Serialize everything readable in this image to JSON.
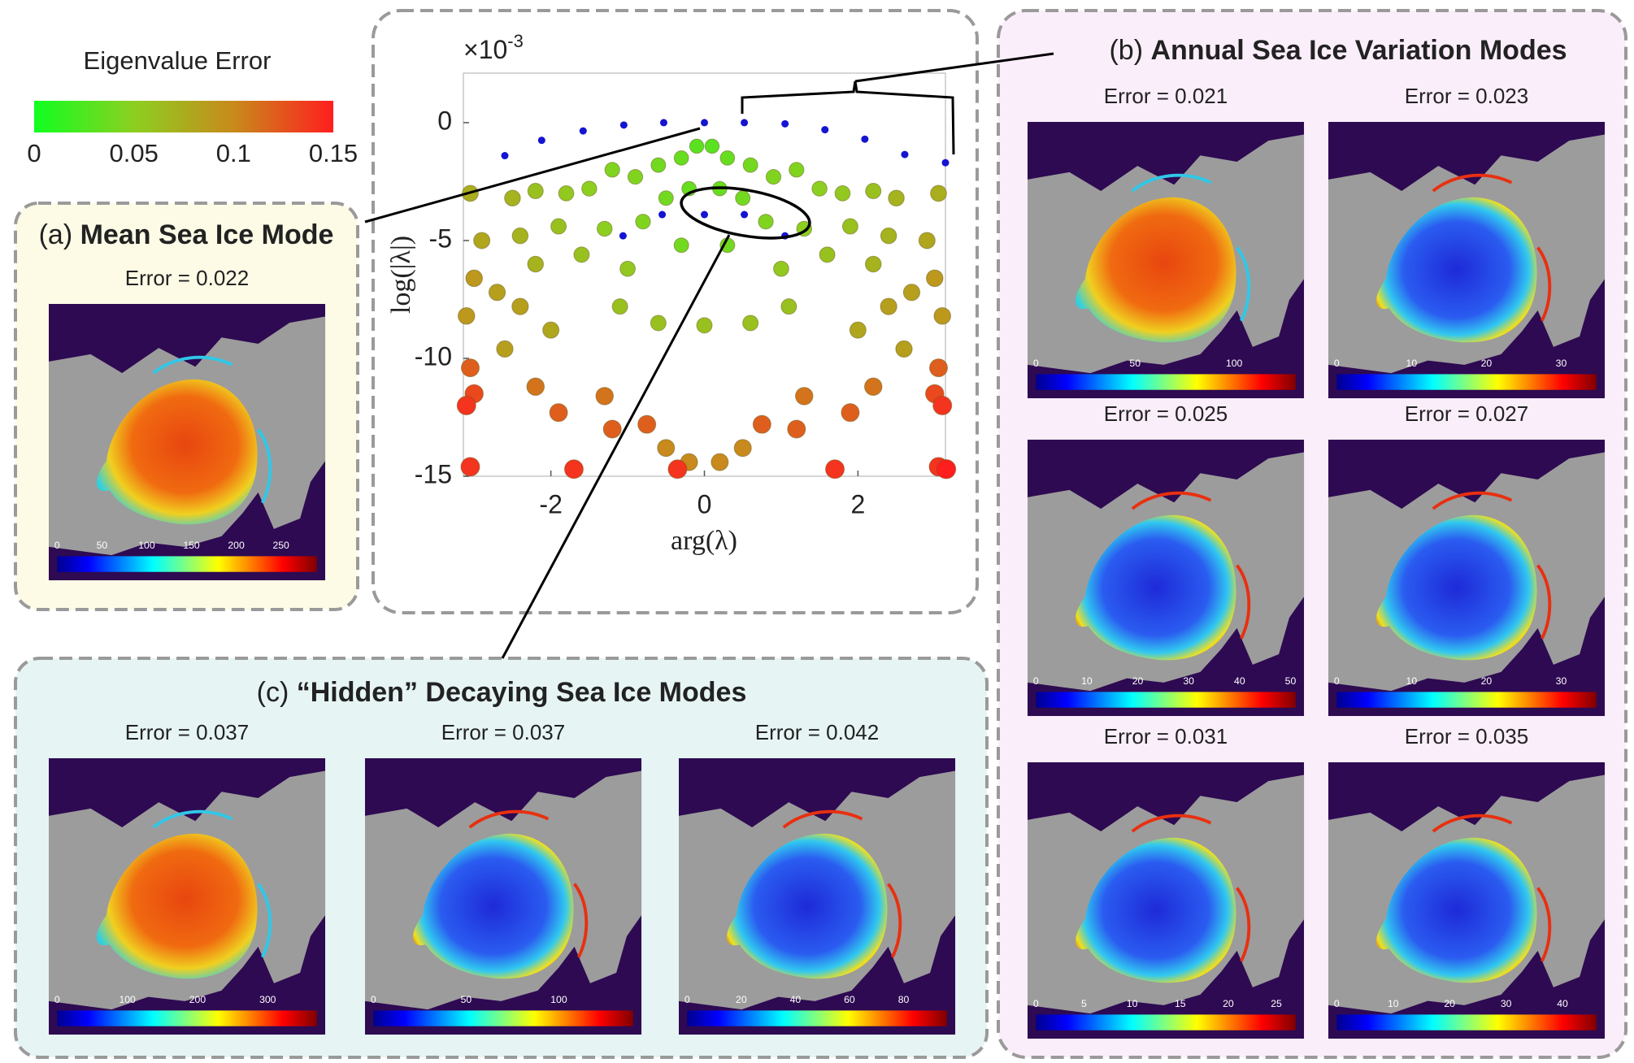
{
  "legend": {
    "title": "Eigenvalue Error",
    "clim": [
      0,
      0.15
    ],
    "ticks": [
      0,
      0.05,
      0.1,
      0.15
    ],
    "colormap": [
      "#10ff20",
      "#8ccf20",
      "#c88a1c",
      "#ff1e1e"
    ]
  },
  "chart_data": {
    "type": "scatter",
    "xlabel": "arg(λ)",
    "ylabel": "log(|λ|)",
    "y_scale_base": "×10",
    "y_scale_exponent": "-3",
    "xlim": [
      -3.14,
      3.14
    ],
    "ylim": [
      -15,
      2.1
    ],
    "xticks": [
      -2,
      0,
      2
    ],
    "yticks": [
      0,
      -5,
      -10,
      -15
    ],
    "points": {
      "x": [
        -0.1,
        0.1,
        -0.3,
        0.3,
        -0.6,
        0.6,
        -0.9,
        0.9,
        -1.2,
        1.2,
        -0.2,
        0.2,
        -0.5,
        0.5,
        -1.5,
        1.5,
        -1.8,
        1.8,
        -2.2,
        2.2,
        -2.5,
        2.5,
        -3.05,
        3.05,
        -0.8,
        0.8,
        -1.3,
        1.3,
        -1.9,
        1.9,
        -2.4,
        2.4,
        -2.9,
        2.9,
        -0.3,
        0.3,
        -1.6,
        1.6,
        -2.2,
        2.2,
        -3.0,
        3.0,
        -2.7,
        2.7,
        -2.4,
        2.4,
        -1.0,
        1.0,
        -3.1,
        3.1,
        -0.6,
        0,
        0.6,
        -1.1,
        1.1,
        -2.0,
        2.0,
        -2.6,
        2.6,
        -3.05,
        3.05,
        -3.0,
        3.0,
        -2.2,
        2.2,
        -1.3,
        1.3,
        -1.9,
        1.9,
        -0.75,
        0.75,
        -3.1,
        3.1,
        -1.2,
        1.2,
        -0.5,
        0.5,
        -0.2,
        0.2,
        -3.05,
        3.05,
        -1.7,
        1.7,
        -0.35,
        3.15
      ],
      "y": [
        -1.0,
        -1.0,
        -1.5,
        -1.5,
        -1.8,
        -1.8,
        -2.3,
        -2.3,
        -2.0,
        -2.0,
        -2.8,
        -2.8,
        -3.2,
        -3.2,
        -2.8,
        -2.8,
        -3.0,
        -3.0,
        -2.9,
        -2.9,
        -3.2,
        -3.2,
        -3.0,
        -3.0,
        -4.2,
        -4.2,
        -4.5,
        -4.5,
        -4.4,
        -4.4,
        -4.8,
        -4.8,
        -5.0,
        -5.0,
        -5.2,
        -5.2,
        -5.6,
        -5.6,
        -6.0,
        -6.0,
        -6.6,
        -6.6,
        -7.2,
        -7.2,
        -7.8,
        -7.8,
        -6.2,
        -6.2,
        -8.2,
        -8.2,
        -8.5,
        -8.6,
        -8.5,
        -7.8,
        -7.8,
        -8.8,
        -8.8,
        -9.6,
        -9.6,
        -10.4,
        -10.4,
        -11.5,
        -11.5,
        -11.2,
        -11.2,
        -11.6,
        -11.6,
        -12.3,
        -12.3,
        -12.8,
        -12.8,
        -12.0,
        -12.0,
        -13.0,
        -13.0,
        -13.8,
        -13.8,
        -14.4,
        -14.4,
        -14.6,
        -14.6,
        -14.7,
        -14.7,
        -14.7,
        -14.7
      ],
      "error": [
        0.03,
        0.03,
        0.035,
        0.035,
        0.04,
        0.04,
        0.045,
        0.045,
        0.045,
        0.045,
        0.035,
        0.035,
        0.04,
        0.04,
        0.05,
        0.05,
        0.055,
        0.055,
        0.06,
        0.06,
        0.07,
        0.07,
        0.075,
        0.075,
        0.045,
        0.045,
        0.05,
        0.05,
        0.06,
        0.06,
        0.07,
        0.07,
        0.08,
        0.08,
        0.04,
        0.04,
        0.06,
        0.06,
        0.07,
        0.07,
        0.09,
        0.09,
        0.085,
        0.085,
        0.085,
        0.085,
        0.055,
        0.055,
        0.09,
        0.09,
        0.06,
        0.06,
        0.06,
        0.06,
        0.06,
        0.08,
        0.08,
        0.085,
        0.085,
        0.12,
        0.12,
        0.13,
        0.13,
        0.11,
        0.11,
        0.11,
        0.11,
        0.12,
        0.12,
        0.12,
        0.12,
        0.14,
        0.14,
        0.12,
        0.12,
        0.1,
        0.1,
        0.1,
        0.1,
        0.14,
        0.14,
        0.14,
        0.14,
        0.14,
        0.15
      ]
    },
    "exact": {
      "color": "#1414d2",
      "x": [
        -2.6,
        -2.12,
        -1.58,
        -1.05,
        -0.53,
        0,
        0.52,
        1.05,
        1.57,
        2.09,
        2.61,
        3.14,
        -1.06,
        -0.55,
        0,
        0.52,
        1.05
      ],
      "y": [
        -1.4,
        -0.75,
        -0.35,
        -0.1,
        0,
        0,
        0,
        -0.05,
        -0.3,
        -0.7,
        -1.35,
        -1.7,
        -4.8,
        -3.9,
        -3.9,
        -3.9,
        -4.8
      ]
    }
  },
  "panels": [
    {
      "label": "(a)",
      "title": "Mean Sea Ice Mode",
      "maps": [
        {
          "error_label": "Error = 0.022",
          "clim": [
            0,
            290
          ],
          "ticks": [
            0,
            50,
            100,
            150,
            200,
            250
          ]
        }
      ]
    },
    {
      "label": "(b)",
      "title": "Annual Sea Ice Variation Modes",
      "maps": [
        {
          "error_label": "Error = 0.021",
          "clim": [
            0,
            131
          ],
          "ticks": [
            0,
            50,
            100
          ]
        },
        {
          "error_label": "Error = 0.023",
          "clim": [
            0,
            34.7
          ],
          "ticks": [
            0,
            10,
            20,
            30
          ]
        },
        {
          "error_label": "Error = 0.025",
          "clim": [
            0,
            51
          ],
          "ticks": [
            0,
            10,
            20,
            30,
            40,
            50
          ]
        },
        {
          "error_label": "Error = 0.027",
          "clim": [
            0,
            34.7
          ],
          "ticks": [
            0,
            10,
            20,
            30
          ]
        },
        {
          "error_label": "Error = 0.031",
          "clim": [
            0,
            27
          ],
          "ticks": [
            0,
            5,
            10,
            15,
            20,
            25
          ]
        },
        {
          "error_label": "Error = 0.035",
          "clim": [
            0,
            46
          ],
          "ticks": [
            0,
            10,
            20,
            30,
            40
          ]
        }
      ]
    },
    {
      "label": "(c)",
      "title": "“Hidden” Decaying Sea Ice Modes",
      "maps": [
        {
          "error_label": "Error = 0.037",
          "clim": [
            0,
            370
          ],
          "ticks": [
            0,
            100,
            200,
            300
          ]
        },
        {
          "error_label": "Error = 0.037",
          "clim": [
            0,
            140
          ],
          "ticks": [
            0,
            50,
            100
          ]
        },
        {
          "error_label": "Error = 0.042",
          "clim": [
            0,
            96
          ],
          "ticks": [
            0,
            20,
            40,
            60,
            80
          ]
        }
      ]
    }
  ]
}
